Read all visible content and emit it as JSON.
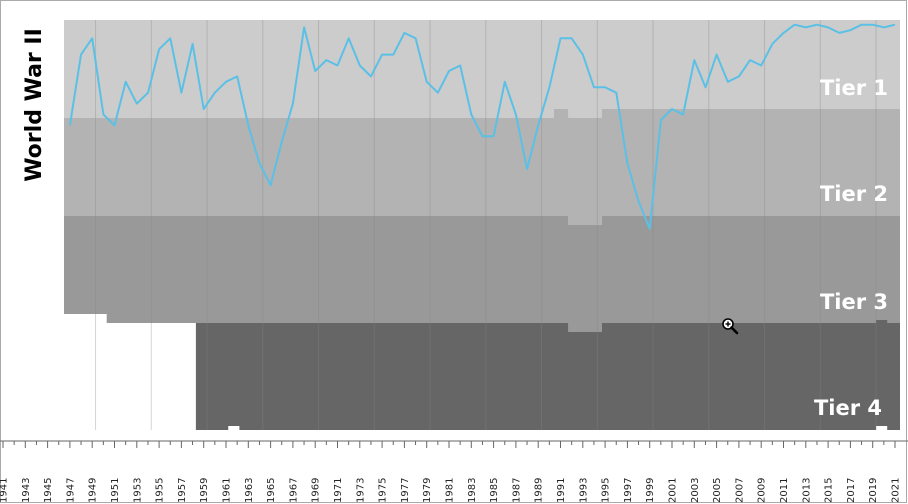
{
  "chart_data": {
    "type": "line",
    "annotation": "World War II",
    "tiers": [
      "Tier 1",
      "Tier 2",
      "Tier 3",
      "Tier 4"
    ],
    "x_ticks": [
      "1941",
      "1943",
      "1945",
      "1947",
      "1949",
      "1951",
      "1953",
      "1955",
      "1957",
      "1959",
      "1961",
      "1963",
      "1965",
      "1967",
      "1969",
      "1971",
      "1973",
      "1975",
      "1977",
      "1979",
      "1981",
      "1983",
      "1985",
      "1987",
      "1989",
      "1991",
      "1993",
      "1995",
      "1997",
      "1999",
      "2001",
      "2003",
      "2005",
      "2007",
      "2009",
      "2011",
      "2013",
      "2015",
      "2017",
      "2019",
      "2021"
    ],
    "xlim": [
      1940,
      2022
    ],
    "series": [
      {
        "x": [
          1947,
          1948,
          1949,
          1950,
          1951,
          1952,
          1953,
          1954,
          1955,
          1956,
          1957,
          1958,
          1959,
          1960,
          1961,
          1962,
          1963,
          1964,
          1965,
          1966,
          1967,
          1968,
          1969,
          1970,
          1971,
          1972,
          1973,
          1974,
          1975,
          1976,
          1977,
          1978,
          1979,
          1980,
          1981,
          1982,
          1983,
          1984,
          1985,
          1986,
          1987,
          1988,
          1989,
          1990,
          1991,
          1992,
          1993,
          1994,
          1995,
          1996,
          1997,
          1998,
          1999,
          2000,
          2001,
          2002,
          2003,
          2004,
          2005,
          2006,
          2007,
          2008,
          2009,
          2010,
          2011,
          2012,
          2013,
          2014,
          2015,
          2016,
          2017,
          2018,
          2019,
          2020,
          2021
        ],
        "values": [
          19,
          6,
          3,
          17,
          19,
          11,
          15,
          13,
          5,
          3,
          13,
          4,
          16,
          13,
          11,
          10,
          19,
          26,
          30,
          22,
          15,
          1,
          9,
          7,
          8,
          3,
          8,
          10,
          6,
          6,
          2,
          3,
          11,
          13,
          9,
          8,
          17,
          21,
          21,
          11,
          17,
          27,
          19,
          12,
          3,
          3,
          6,
          12,
          12,
          13,
          26,
          33,
          38,
          18,
          16,
          17,
          7,
          12,
          6,
          11,
          10,
          7,
          8,
          4,
          2,
          0.5,
          1,
          0.5,
          1,
          2,
          1.5,
          0.5,
          0.5,
          1,
          0.5
        ],
        "color": "#5bc0e6"
      }
    ],
    "tier_colors": [
      "#cccccc",
      "#b3b3b3",
      "#999999",
      "#666666"
    ]
  }
}
